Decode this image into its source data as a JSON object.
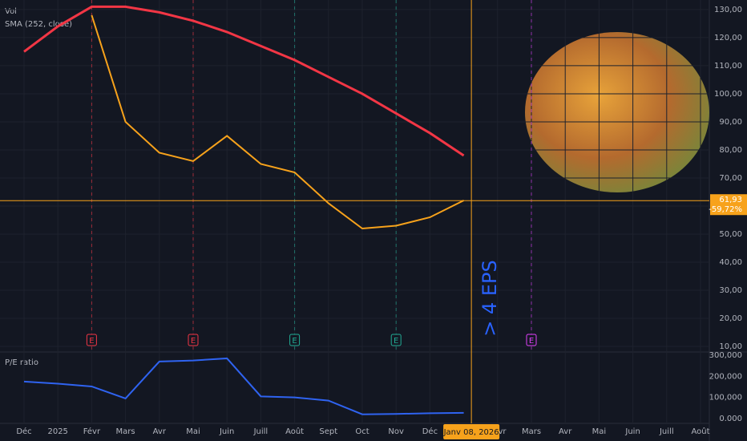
{
  "chart_data": [
    {
      "type": "line",
      "volume_label": "Vol",
      "x": [
        "2024-12",
        "2025-01",
        "2025-02",
        "2025-03",
        "2025-04",
        "2025-05",
        "2025-06",
        "2025-07",
        "2025-08",
        "2025-09",
        "2025-10",
        "2025-11",
        "2025-12",
        "2026-01"
      ],
      "series": [
        {
          "color": "#f7a21b",
          "values": [
            null,
            null,
            128,
            90,
            79,
            76,
            85,
            75,
            72,
            61,
            52,
            53,
            56,
            62
          ]
        },
        {
          "name": "SMA (252, close)",
          "color": "#f23645",
          "values": [
            115,
            124,
            131,
            131,
            129,
            126,
            122,
            117,
            112,
            106,
            100,
            93,
            86,
            78
          ]
        }
      ],
      "ylim": [
        8.3,
        133.4
      ],
      "yticks": [
        {
          "value": 10,
          "label": "10,00"
        },
        {
          "value": 20,
          "label": "20,00"
        },
        {
          "value": 30,
          "label": "30,00"
        },
        {
          "value": 40,
          "label": "40,00"
        },
        {
          "value": 50,
          "label": "50,00"
        },
        {
          "value": 60,
          "label": "60,00"
        },
        {
          "value": 70,
          "label": "70,00"
        },
        {
          "value": 80,
          "label": "80,00"
        },
        {
          "value": 90,
          "label": "90,00"
        },
        {
          "value": 100,
          "label": "100,00"
        },
        {
          "value": 110,
          "label": "110,00"
        },
        {
          "value": 120,
          "label": "120,00"
        },
        {
          "value": 130,
          "label": "130,00"
        }
      ],
      "grid": true,
      "price_marker": {
        "value": 61.93,
        "label": "61,93",
        "change": -59.72,
        "change_label": "-59,72%",
        "color": "#f7a21b"
      },
      "events": [
        {
          "x": "2025-02",
          "label": "E",
          "color": "#f23645"
        },
        {
          "x": "2025-05",
          "label": "E",
          "color": "#f23645"
        },
        {
          "x": "2025-08",
          "label": "E",
          "color": "#22ab94"
        },
        {
          "x": "2025-11",
          "label": "E",
          "color": "#22ab94"
        },
        {
          "x": "2026-03",
          "label": "E",
          "color": "#e040fb"
        }
      ],
      "annotation": "> 4 EPS"
    },
    {
      "type": "line",
      "title": "P/E ratio",
      "x": [
        "2024-12",
        "2025-01",
        "2025-02",
        "2025-03",
        "2025-04",
        "2025-05",
        "2025-06",
        "2025-07",
        "2025-08",
        "2025-09",
        "2025-10",
        "2025-11",
        "2025-12",
        "2026-01"
      ],
      "series": [
        {
          "color": "#2f63f0",
          "values": [
            175000,
            165000,
            152000,
            95000,
            270000,
            275000,
            285000,
            105000,
            100000,
            85000,
            20000,
            22000,
            25000,
            27000
          ]
        }
      ],
      "ylim": [
        -22800,
        311400
      ],
      "yticks": [
        {
          "value": 0,
          "label": "0.000"
        },
        {
          "value": 100000,
          "label": "100,000"
        },
        {
          "value": 200000,
          "label": "200,000"
        },
        {
          "value": 300000,
          "label": "300,000"
        }
      ],
      "xticks": [
        {
          "value": "2024-12",
          "label": "Déc"
        },
        {
          "value": "2025-01",
          "label": "2025"
        },
        {
          "value": "2025-02",
          "label": "Févr"
        },
        {
          "value": "2025-03",
          "label": "Mars"
        },
        {
          "value": "2025-04",
          "label": "Avr"
        },
        {
          "value": "2025-05",
          "label": "Mai"
        },
        {
          "value": "2025-06",
          "label": "Juin"
        },
        {
          "value": "2025-07",
          "label": "Juill"
        },
        {
          "value": "2025-08",
          "label": "Août"
        },
        {
          "value": "2025-09",
          "label": "Sept"
        },
        {
          "value": "2025-10",
          "label": "Oct"
        },
        {
          "value": "2025-11",
          "label": "Nov"
        },
        {
          "value": "2025-12",
          "label": "Déc"
        },
        {
          "value": "2026-02",
          "label": "Févr"
        },
        {
          "value": "2026-03",
          "label": "Mars"
        },
        {
          "value": "2026-04",
          "label": "Avr"
        },
        {
          "value": "2026-05",
          "label": "Mai"
        },
        {
          "value": "2026-06",
          "label": "Juin"
        },
        {
          "value": "2026-07",
          "label": "Juill"
        },
        {
          "value": "2026-08",
          "label": "Août"
        }
      ],
      "crosshair": {
        "x": "2026-01-08",
        "label": "Janv 08, 2026",
        "color": "#f7a21b"
      }
    }
  ]
}
